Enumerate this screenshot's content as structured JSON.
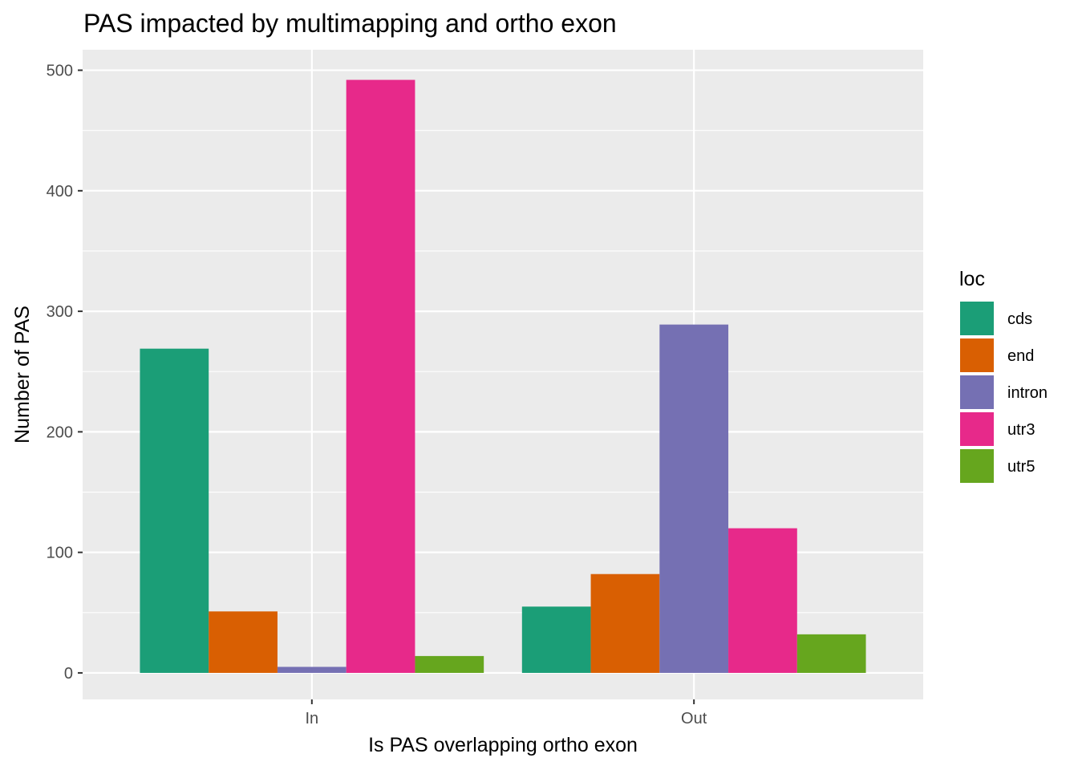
{
  "chart_data": {
    "type": "bar",
    "title": "PAS impacted by multimapping and ortho exon",
    "xlabel": "Is PAS overlapping ortho exon",
    "ylabel": "Number of PAS",
    "categories": [
      "In",
      "Out"
    ],
    "ylim": [
      -22,
      517
    ],
    "yticks": [
      0,
      100,
      200,
      300,
      400,
      500
    ],
    "grid": true,
    "legend": {
      "title": "loc",
      "position": "right"
    },
    "series": [
      {
        "name": "cds",
        "color": "#1b9e77",
        "values": [
          269,
          55
        ]
      },
      {
        "name": "end",
        "color": "#d95f02",
        "values": [
          51,
          82
        ]
      },
      {
        "name": "intron",
        "color": "#7570b3",
        "values": [
          5,
          289
        ]
      },
      {
        "name": "utr3",
        "color": "#e7298a",
        "values": [
          492,
          120
        ]
      },
      {
        "name": "utr5",
        "color": "#66a61e",
        "values": [
          14,
          32
        ]
      }
    ]
  }
}
